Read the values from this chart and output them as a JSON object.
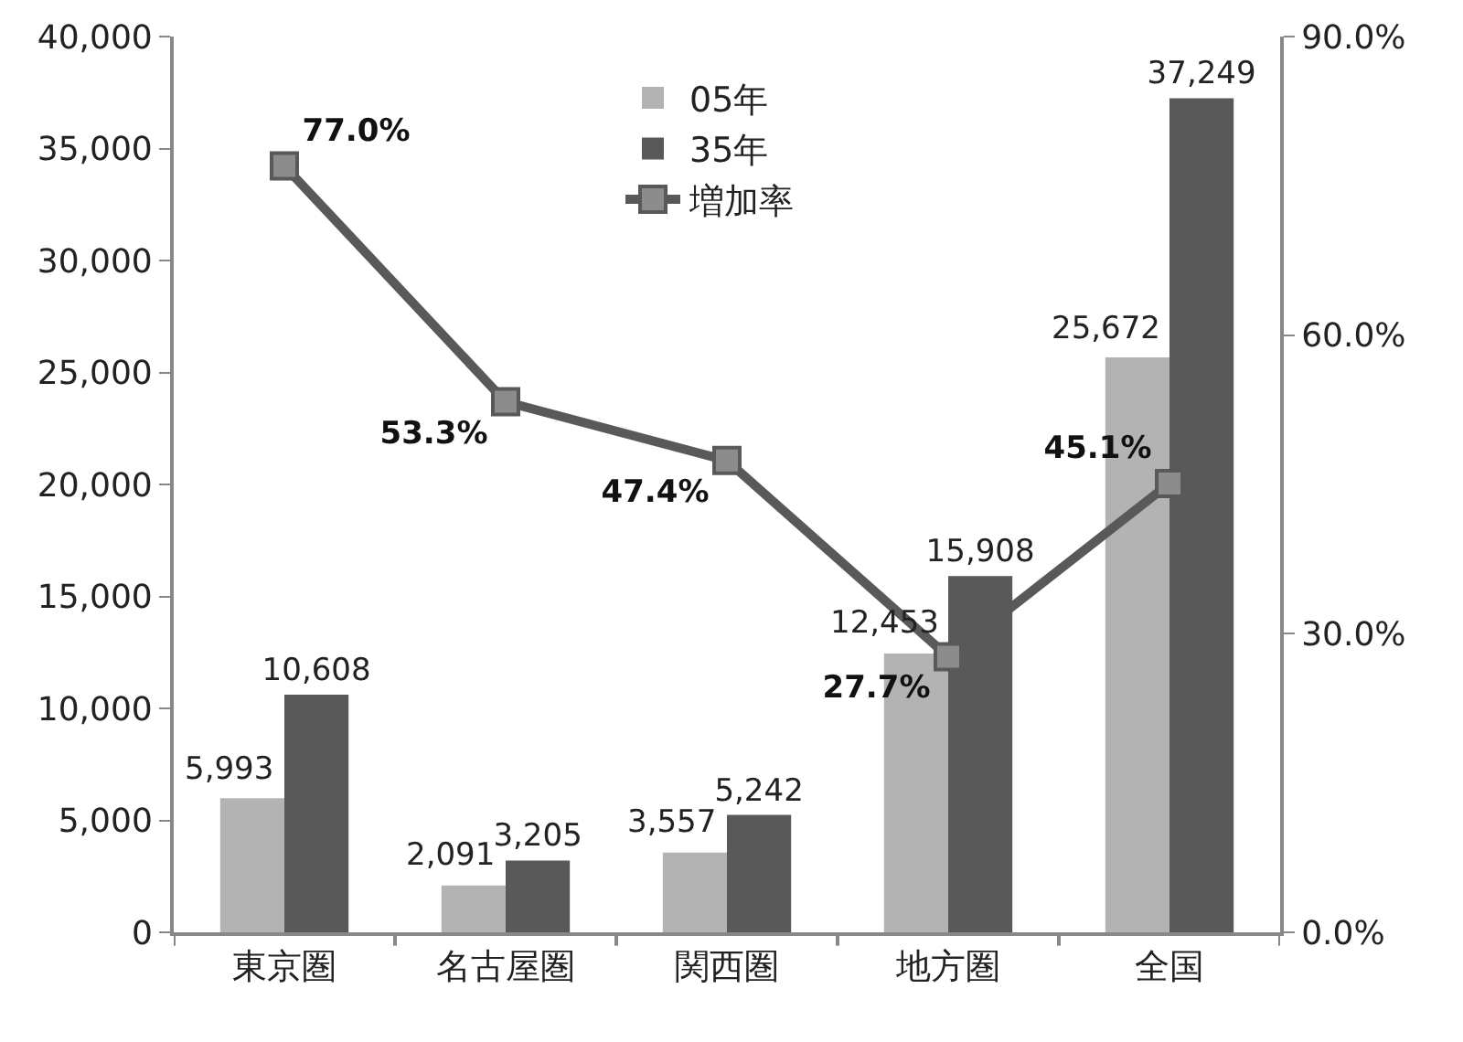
{
  "chart_data": {
    "type": "bar",
    "categories": [
      "東京圏",
      "名古屋圏",
      "関西圏",
      "地方圏",
      "全国"
    ],
    "series": [
      {
        "name": "05年",
        "color": "#b3b3b3",
        "values": [
          5993,
          2091,
          3557,
          12453,
          25672
        ],
        "value_labels": [
          "5,993",
          "2,091",
          "3,557",
          "12,453",
          "25,672"
        ]
      },
      {
        "name": "35年",
        "color": "#595959",
        "values": [
          10608,
          3205,
          5242,
          15908,
          37249
        ],
        "value_labels": [
          "10,608",
          "3,205",
          "5,242",
          "15,908",
          "37,249"
        ]
      },
      {
        "name": "増加率",
        "type": "line",
        "axis": "y2",
        "color": "#595959",
        "marker": "square",
        "values": [
          77.0,
          53.3,
          47.4,
          27.7,
          45.1
        ],
        "value_labels": [
          "77.0%",
          "53.3%",
          "47.4%",
          "27.7%",
          "45.1%"
        ]
      }
    ],
    "ylim": [
      0,
      40000
    ],
    "yticks": [
      {
        "value": 0,
        "label": "0"
      },
      {
        "value": 5000,
        "label": "5,000"
      },
      {
        "value": 10000,
        "label": "10,000"
      },
      {
        "value": 15000,
        "label": "15,000"
      },
      {
        "value": 20000,
        "label": "20,000"
      },
      {
        "value": 25000,
        "label": "25,000"
      },
      {
        "value": 30000,
        "label": "30,000"
      },
      {
        "value": 35000,
        "label": "35,000"
      },
      {
        "value": 40000,
        "label": "40,000"
      }
    ],
    "y2lim": [
      0,
      90
    ],
    "y2ticks": [
      {
        "value": 0,
        "label": "0.0%"
      },
      {
        "value": 30,
        "label": "30.0%"
      },
      {
        "value": 60,
        "label": "60.0%"
      },
      {
        "value": 90,
        "label": "90.0%"
      }
    ],
    "grid": false,
    "legend": "top"
  }
}
